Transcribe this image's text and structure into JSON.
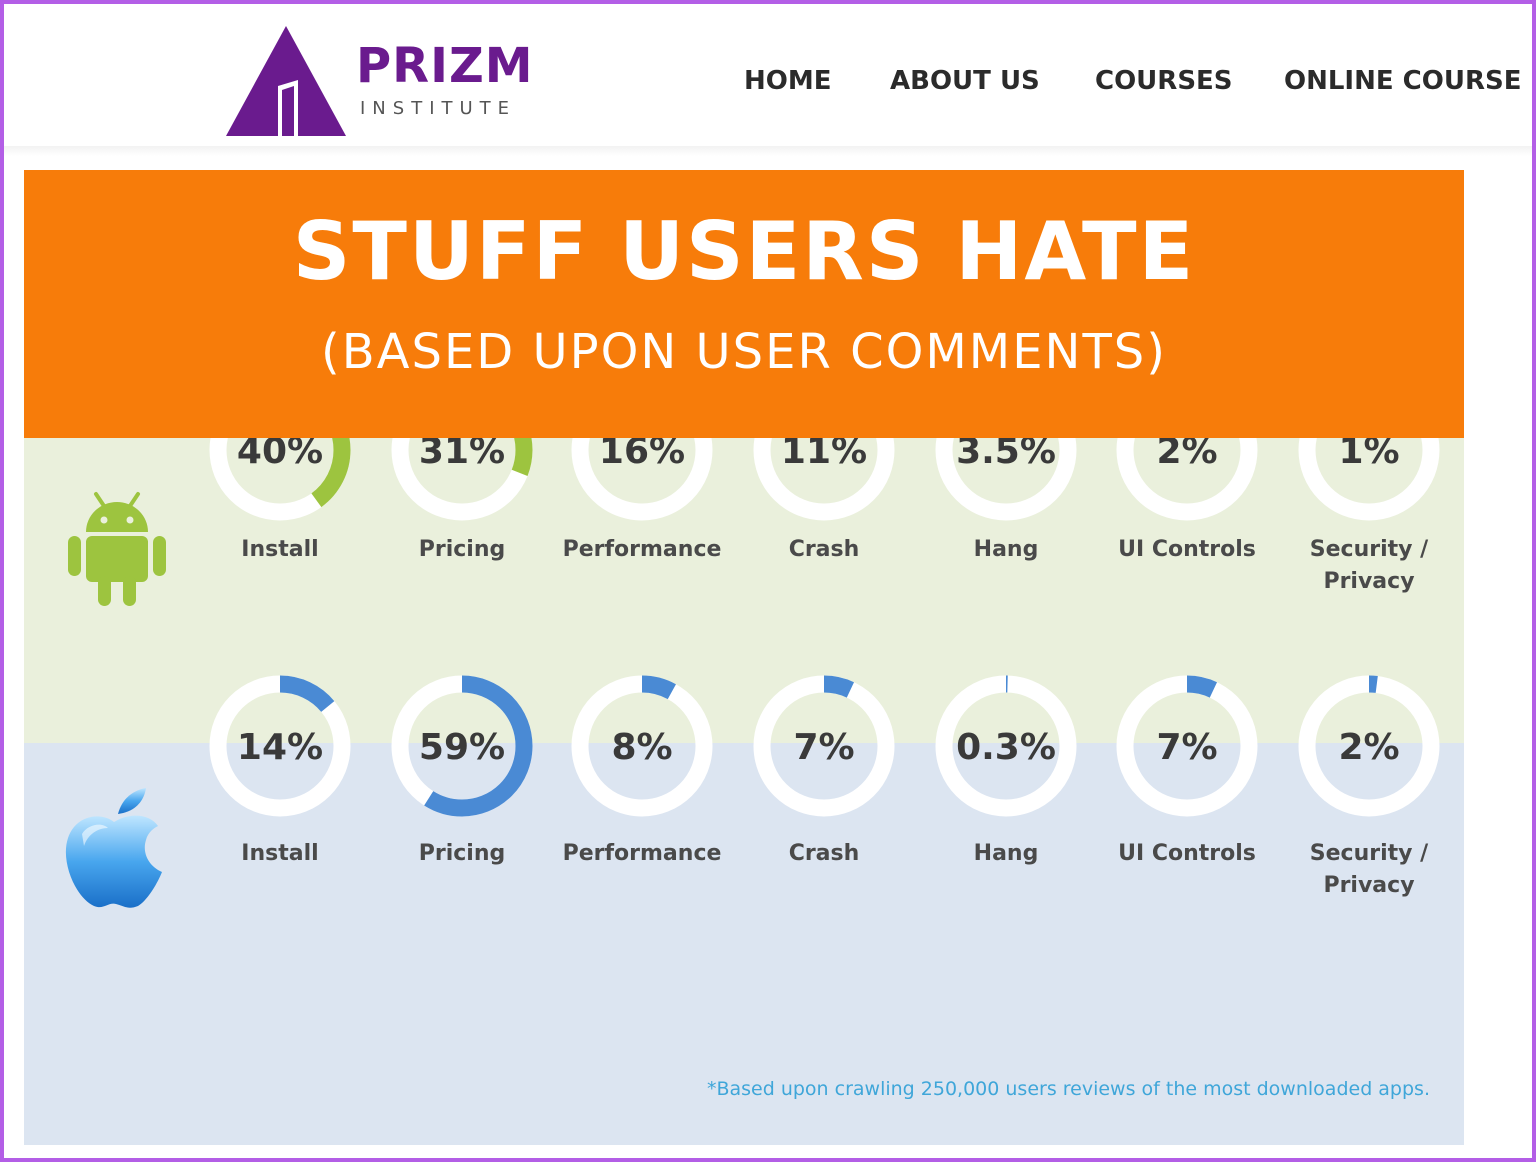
{
  "header": {
    "logo_name": "PRIZM",
    "logo_sub": "INSTITUTE",
    "nav": [
      "HOME",
      "ABOUT US",
      "COURSES",
      "ONLINE COURSE"
    ]
  },
  "infographic": {
    "title": "STUFF USERS HATE",
    "subtitle": "(BASED UPON USER COMMENTS)",
    "footnote": "*Based upon crawling 250,000 users reviews of the most downloaded apps."
  },
  "colors": {
    "brand_purple": "#6a1b8e",
    "banner_orange": "#f77c0a",
    "android_green": "#9dc43f",
    "ios_blue": "#4a8ad4",
    "ring_track": "#ffffff"
  },
  "chart_data": [
    {
      "type": "donut",
      "platform": "Android",
      "icon": "android-icon",
      "categories": [
        "Install",
        "Pricing",
        "Performance",
        "Crash",
        "Hang",
        "UI Controls",
        "Security / Privacy"
      ],
      "labels": [
        "40%",
        "31%",
        "16%",
        "11%",
        "3.5%",
        "2%",
        "1%"
      ],
      "values": [
        40,
        31,
        16,
        11,
        3.5,
        2,
        1
      ]
    },
    {
      "type": "donut",
      "platform": "iOS",
      "icon": "apple-icon",
      "categories": [
        "Install",
        "Pricing",
        "Performance",
        "Crash",
        "Hang",
        "UI Controls",
        "Security / Privacy"
      ],
      "labels": [
        "14%",
        "59%",
        "8%",
        "7%",
        "0.3%",
        "7%",
        "2%"
      ],
      "values": [
        14,
        59,
        8,
        7,
        0.3,
        7,
        2
      ]
    }
  ]
}
